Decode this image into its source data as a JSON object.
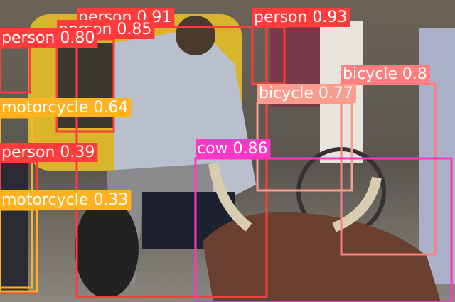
{
  "detections": [
    {
      "label": "person 0.91"
    },
    {
      "label": "person 0.85"
    },
    {
      "label": "person 0.80"
    },
    {
      "label": "person 0.93"
    },
    {
      "label": "bicycle 0.8"
    },
    {
      "label": "bicycle 0.77"
    },
    {
      "label": "motorcycle 0.64"
    },
    {
      "label": "person 0.39"
    },
    {
      "label": "motorcycle 0.33"
    },
    {
      "label": "cow 0.86"
    }
  ]
}
